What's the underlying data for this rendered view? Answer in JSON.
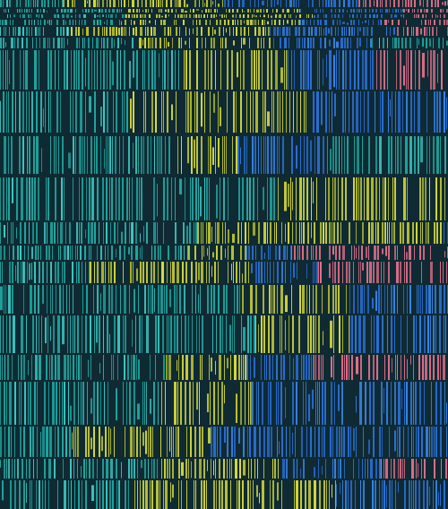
{
  "artwork": {
    "palette": {
      "background": "#0f2a33",
      "teal": "#1fa7a0",
      "cyan": "#3ec9c4",
      "green_teal": "#14b38a",
      "yellow": "#d6d93a",
      "olive": "#b8c22a",
      "blue": "#2a6fd6",
      "blue_light": "#3a86e8",
      "pink": "#e0708a"
    },
    "bands": [
      {
        "segments": [
          [
            "teal",
            0.14
          ],
          [
            "yellow",
            0.36
          ],
          [
            "blue",
            0.3
          ],
          [
            "pink",
            0.2
          ]
        ]
      },
      {
        "segments": [
          [
            "teal",
            0.27
          ],
          [
            "yellow",
            0.4
          ],
          [
            "blue",
            0.23
          ],
          [
            "pink",
            0.1
          ]
        ]
      },
      {
        "segments": [
          [
            "teal",
            0.28
          ],
          [
            "yellow",
            0.42
          ],
          [
            "blue",
            0.2
          ],
          [
            "pink",
            0.1
          ]
        ]
      },
      {
        "segments": [
          [
            "teal",
            0.27
          ],
          [
            "olive",
            0.23
          ],
          [
            "yellow",
            0.17
          ],
          [
            "blue",
            0.18
          ],
          [
            "pink",
            0.15
          ]
        ]
      },
      {
        "segments": [
          [
            "teal",
            0.15
          ],
          [
            "yellow",
            0.45
          ],
          [
            "blue",
            0.28
          ],
          [
            "pink",
            0.12
          ]
        ]
      },
      {
        "segments": [
          [
            "teal",
            0.31
          ],
          [
            "yellow",
            0.3
          ],
          [
            "blue",
            0.22
          ],
          [
            "teal",
            0.17
          ]
        ]
      },
      {
        "segments": [
          [
            "teal",
            0.4
          ],
          [
            "yellow",
            0.24
          ],
          [
            "blue",
            0.2
          ],
          [
            "pink",
            0.16
          ]
        ]
      },
      {
        "segments": [
          [
            "teal",
            0.29
          ],
          [
            "yellow",
            0.4
          ],
          [
            "blue",
            0.31
          ]
        ]
      },
      {
        "segments": [
          [
            "teal",
            0.38
          ],
          [
            "yellow",
            0.15
          ],
          [
            "blue",
            0.2
          ],
          [
            "teal",
            0.27
          ]
        ]
      },
      {
        "segments": [
          [
            "teal",
            0.62
          ],
          [
            "yellow",
            0.38
          ]
        ]
      },
      {
        "segments": [
          [
            "teal",
            0.44
          ],
          [
            "yellow",
            0.55
          ],
          [
            "blue",
            0.01
          ]
        ]
      },
      {
        "segments": [
          [
            "teal",
            0.42
          ],
          [
            "yellow",
            0.13
          ],
          [
            "blue",
            0.1
          ],
          [
            "pink",
            0.35
          ]
        ]
      },
      {
        "segments": [
          [
            "teal",
            0.2
          ],
          [
            "yellow",
            0.36
          ],
          [
            "blue",
            0.15
          ],
          [
            "pink",
            0.29
          ]
        ]
      },
      {
        "segments": [
          [
            "teal",
            0.54
          ],
          [
            "yellow",
            0.24
          ],
          [
            "blue",
            0.22
          ]
        ]
      },
      {
        "segments": [
          [
            "teal",
            0.57
          ],
          [
            "yellow",
            0.21
          ],
          [
            "blue",
            0.22
          ]
        ]
      },
      {
        "segments": [
          [
            "teal",
            0.37
          ],
          [
            "yellow",
            0.18
          ],
          [
            "blue",
            0.15
          ],
          [
            "pink",
            0.3
          ]
        ]
      },
      {
        "segments": [
          [
            "teal",
            0.36
          ],
          [
            "yellow",
            0.2
          ],
          [
            "blue",
            0.44
          ]
        ]
      },
      {
        "segments": [
          [
            "teal",
            0.16
          ],
          [
            "yellow",
            0.31
          ],
          [
            "blue",
            0.53
          ]
        ]
      },
      {
        "segments": [
          [
            "teal",
            0.36
          ],
          [
            "yellow",
            0.27
          ],
          [
            "blue",
            0.22
          ],
          [
            "pink",
            0.15
          ]
        ]
      },
      {
        "segments": [
          [
            "teal",
            0.3
          ],
          [
            "yellow",
            0.45
          ],
          [
            "blue",
            0.25
          ]
        ]
      }
    ]
  }
}
